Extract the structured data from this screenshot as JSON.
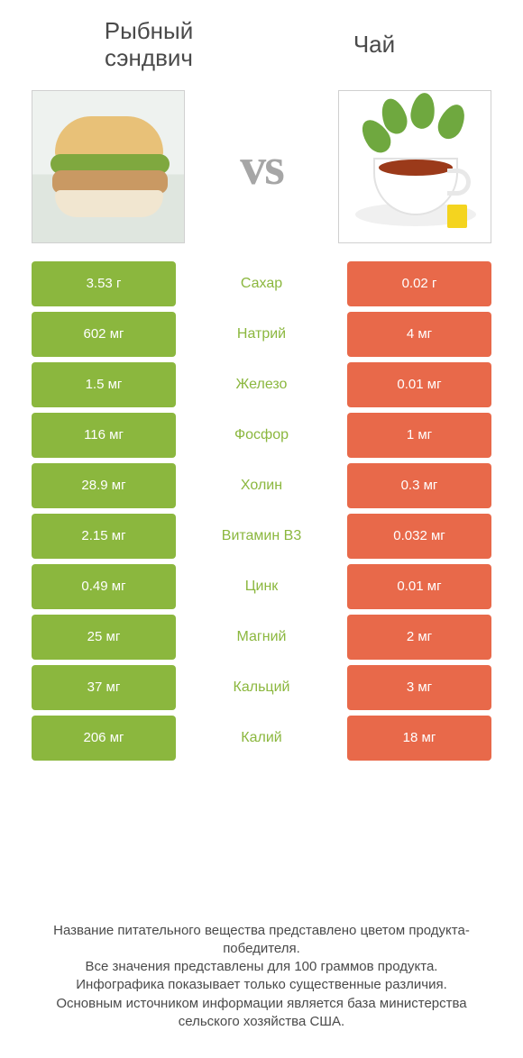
{
  "colors": {
    "left": "#8bb73e",
    "left_text_winner": "#8bb73e",
    "right": "#e8694a",
    "right_text_winner": "#e8694a",
    "mid_default": "#4a4a4a"
  },
  "header": {
    "left_title_line1": "Рыбный",
    "left_title_line2": "сэндвич",
    "right_title": "Чай",
    "vs": "vs"
  },
  "rows": [
    {
      "left": "3.53 г",
      "mid": "Сахар",
      "right": "0.02 г",
      "winner": "left"
    },
    {
      "left": "602 мг",
      "mid": "Натрий",
      "right": "4 мг",
      "winner": "left"
    },
    {
      "left": "1.5 мг",
      "mid": "Железо",
      "right": "0.01 мг",
      "winner": "left"
    },
    {
      "left": "116 мг",
      "mid": "Фосфор",
      "right": "1 мг",
      "winner": "left"
    },
    {
      "left": "28.9 мг",
      "mid": "Холин",
      "right": "0.3 мг",
      "winner": "left"
    },
    {
      "left": "2.15 мг",
      "mid": "Витамин B3",
      "right": "0.032 мг",
      "winner": "left"
    },
    {
      "left": "0.49 мг",
      "mid": "Цинк",
      "right": "0.01 мг",
      "winner": "left"
    },
    {
      "left": "25 мг",
      "mid": "Магний",
      "right": "2 мг",
      "winner": "left"
    },
    {
      "left": "37 мг",
      "mid": "Кальций",
      "right": "3 мг",
      "winner": "left"
    },
    {
      "left": "206 мг",
      "mid": "Калий",
      "right": "18 мг",
      "winner": "left"
    }
  ],
  "footer": {
    "line1": "Название питательного вещества представлено цветом продукта-победителя.",
    "line2": "Все значения представлены для 100 граммов продукта.",
    "line3": "Инфографика показывает только существенные различия.",
    "line4": "Основным источником информации является база министерства сельского хозяйства США."
  }
}
